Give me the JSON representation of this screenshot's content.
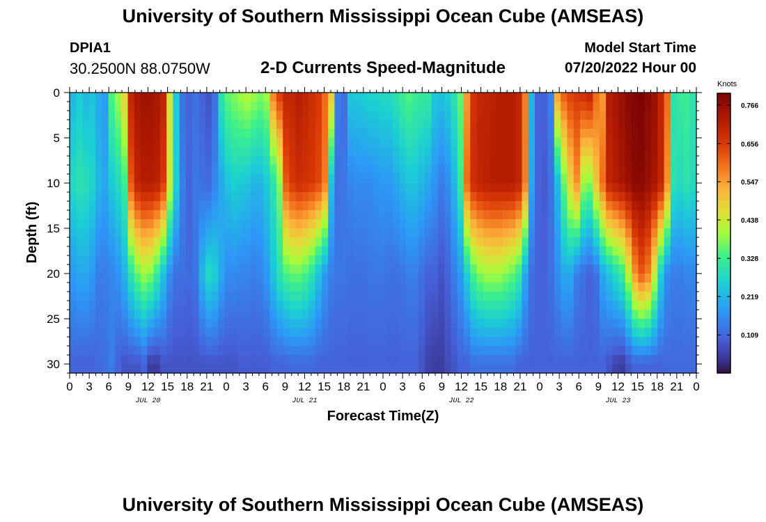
{
  "header": {
    "title": "University of Southern Mississippi Ocean Cube (AMSEAS)",
    "footer_title": "University of Southern Mississippi Ocean Cube (AMSEAS)",
    "station": "DPIA1",
    "coordinates": "30.2500N  88.0750W",
    "subtitle": "2-D Currents Speed-Magnitude",
    "start_label": "Model Start Time",
    "start_value": "07/20/2022 Hour 00"
  },
  "chart_data": {
    "type": "heatmap",
    "title": "2-D Currents Speed-Magnitude",
    "xlabel": "Forecast Time(Z)",
    "ylabel": "Depth (ft)",
    "x_range_hours": [
      0,
      96
    ],
    "y_range_ft": [
      0,
      31
    ],
    "y_ticks": [
      0,
      5,
      10,
      15,
      20,
      25,
      30
    ],
    "x_tick_hours": [
      0,
      3,
      6,
      9,
      12,
      15,
      18,
      21,
      24,
      27,
      30,
      33,
      36,
      39,
      42,
      45,
      48,
      51,
      54,
      57,
      60,
      63,
      66,
      69,
      72,
      75,
      78,
      81,
      84,
      87,
      90,
      93,
      96
    ],
    "x_tick_labels": [
      "0",
      "3",
      "6",
      "9",
      "12",
      "15",
      "18",
      "21",
      "0",
      "3",
      "6",
      "9",
      "12",
      "15",
      "18",
      "21",
      "0",
      "3",
      "6",
      "9",
      "12",
      "15",
      "18",
      "21",
      "0",
      "3",
      "6",
      "9",
      "12",
      "15",
      "18",
      "21",
      "0"
    ],
    "day_labels": [
      {
        "hour": 12,
        "text": "JUL 20"
      },
      {
        "hour": 36,
        "text": "JUL 21"
      },
      {
        "hour": 60,
        "text": "JUL 22"
      },
      {
        "hour": 84,
        "text": "JUL 23"
      }
    ],
    "colorbar": {
      "units": "Knots",
      "min": 0.0,
      "max": 0.8,
      "tick_values": [
        0.766,
        0.656,
        0.547,
        0.438,
        0.328,
        0.219,
        0.109
      ],
      "tick_labels": [
        "0.766",
        "0.656",
        "0.547",
        "0.438",
        "0.328",
        "0.219",
        "0.109"
      ]
    },
    "data_description_rows": "Approximate current speed (knots) per forecast hour at depth 0 ft, 10 ft, 20 ft, 30 ft",
    "speed_at_depth": [
      [
        0.22,
        0.25,
        0.22,
        0.24,
        0.2,
        0.18,
        0.35,
        0.4,
        0.48,
        0.7,
        0.74,
        0.75,
        0.75,
        0.74,
        0.7,
        0.45,
        0.25,
        0.12,
        0.1,
        0.12,
        0.1,
        0.08,
        0.12,
        0.3,
        0.36,
        0.38,
        0.4,
        0.42,
        0.4,
        0.38,
        0.4,
        0.58,
        0.66,
        0.7,
        0.7,
        0.72,
        0.7,
        0.68,
        0.66,
        0.6,
        0.5,
        0.14,
        0.12,
        0.25,
        0.25,
        0.26,
        0.27,
        0.27,
        0.28,
        0.28,
        0.3,
        0.33,
        0.35,
        0.33,
        0.32,
        0.32,
        0.25,
        0.24,
        0.26,
        0.3,
        0.36,
        0.55,
        0.67,
        0.7,
        0.7,
        0.71,
        0.72,
        0.72,
        0.72,
        0.7,
        0.58,
        0.22,
        0.1,
        0.1,
        0.15,
        0.55,
        0.62,
        0.65,
        0.66,
        0.68,
        0.7,
        0.6,
        0.55,
        0.72,
        0.74,
        0.76,
        0.78,
        0.79,
        0.8,
        0.78,
        0.76,
        0.7,
        0.6,
        0.3,
        0.32,
        0.33,
        0.3
      ],
      [
        0.28,
        0.3,
        0.29,
        0.27,
        0.22,
        0.2,
        0.25,
        0.28,
        0.33,
        0.62,
        0.7,
        0.72,
        0.72,
        0.71,
        0.66,
        0.44,
        0.26,
        0.14,
        0.1,
        0.13,
        0.12,
        0.11,
        0.15,
        0.2,
        0.24,
        0.26,
        0.25,
        0.24,
        0.22,
        0.22,
        0.25,
        0.3,
        0.38,
        0.62,
        0.66,
        0.68,
        0.67,
        0.66,
        0.64,
        0.58,
        0.24,
        0.12,
        0.13,
        0.15,
        0.16,
        0.16,
        0.16,
        0.17,
        0.18,
        0.18,
        0.2,
        0.22,
        0.24,
        0.24,
        0.22,
        0.2,
        0.17,
        0.14,
        0.16,
        0.22,
        0.32,
        0.6,
        0.68,
        0.7,
        0.71,
        0.72,
        0.72,
        0.72,
        0.72,
        0.7,
        0.58,
        0.2,
        0.1,
        0.09,
        0.12,
        0.22,
        0.36,
        0.48,
        0.56,
        0.4,
        0.38,
        0.5,
        0.6,
        0.7,
        0.72,
        0.74,
        0.76,
        0.78,
        0.78,
        0.76,
        0.74,
        0.7,
        0.56,
        0.3,
        0.28,
        0.3,
        0.28
      ],
      [
        0.18,
        0.2,
        0.2,
        0.18,
        0.14,
        0.14,
        0.15,
        0.17,
        0.22,
        0.3,
        0.36,
        0.4,
        0.38,
        0.32,
        0.24,
        0.16,
        0.12,
        0.12,
        0.11,
        0.13,
        0.22,
        0.28,
        0.26,
        0.2,
        0.16,
        0.16,
        0.15,
        0.15,
        0.14,
        0.15,
        0.18,
        0.24,
        0.3,
        0.34,
        0.36,
        0.36,
        0.34,
        0.3,
        0.24,
        0.18,
        0.14,
        0.13,
        0.13,
        0.12,
        0.12,
        0.12,
        0.13,
        0.13,
        0.13,
        0.12,
        0.12,
        0.13,
        0.14,
        0.14,
        0.12,
        0.1,
        0.1,
        0.08,
        0.1,
        0.14,
        0.18,
        0.26,
        0.34,
        0.38,
        0.4,
        0.4,
        0.4,
        0.38,
        0.36,
        0.32,
        0.2,
        0.12,
        0.1,
        0.1,
        0.12,
        0.16,
        0.2,
        0.2,
        0.14,
        0.12,
        0.1,
        0.12,
        0.2,
        0.24,
        0.28,
        0.32,
        0.42,
        0.56,
        0.62,
        0.58,
        0.44,
        0.26,
        0.16,
        0.14,
        0.14,
        0.15,
        0.15
      ],
      [
        0.1,
        0.1,
        0.1,
        0.1,
        0.11,
        0.12,
        0.14,
        0.1,
        0.08,
        0.08,
        0.08,
        0.1,
        0.05,
        0.05,
        0.08,
        0.08,
        0.08,
        0.08,
        0.08,
        0.08,
        0.08,
        0.08,
        0.08,
        0.08,
        0.08,
        0.08,
        0.09,
        0.09,
        0.09,
        0.09,
        0.09,
        0.1,
        0.1,
        0.1,
        0.11,
        0.11,
        0.11,
        0.11,
        0.1,
        0.1,
        0.1,
        0.1,
        0.1,
        0.1,
        0.1,
        0.1,
        0.1,
        0.1,
        0.1,
        0.1,
        0.1,
        0.1,
        0.1,
        0.1,
        0.08,
        0.06,
        0.05,
        0.05,
        0.07,
        0.08,
        0.1,
        0.1,
        0.12,
        0.12,
        0.12,
        0.12,
        0.12,
        0.12,
        0.12,
        0.1,
        0.1,
        0.1,
        0.1,
        0.1,
        0.1,
        0.1,
        0.1,
        0.1,
        0.1,
        0.1,
        0.1,
        0.1,
        0.1,
        0.08,
        0.06,
        0.05,
        0.08,
        0.1,
        0.1,
        0.1,
        0.1,
        0.1,
        0.11,
        0.11,
        0.11,
        0.11,
        0.11
      ]
    ]
  }
}
